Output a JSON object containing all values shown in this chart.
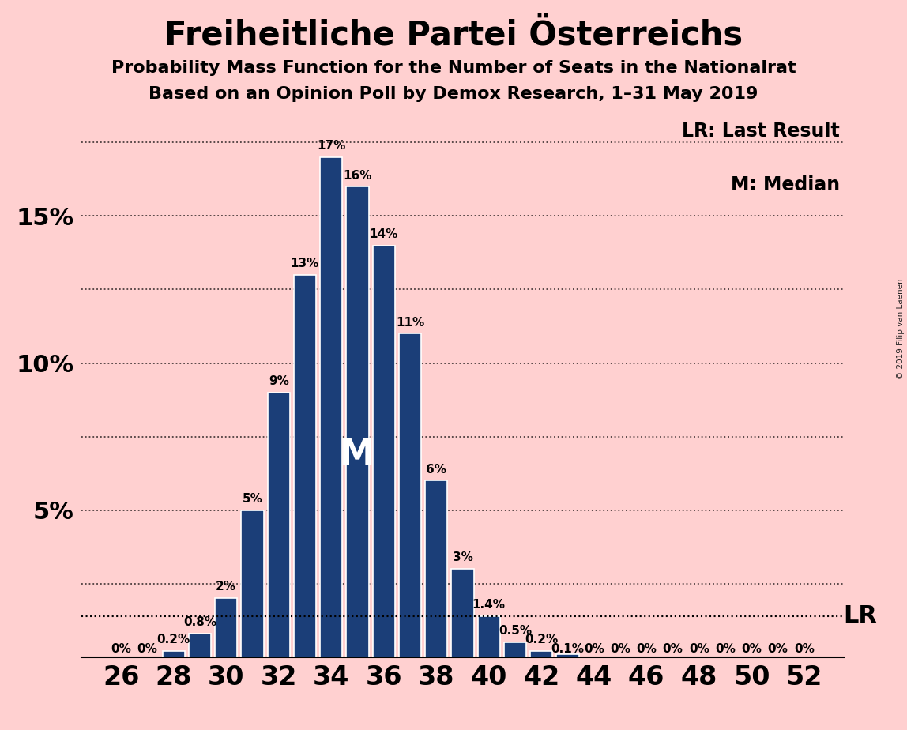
{
  "title": "Freiheitliche Partei Österreichs",
  "subtitle1": "Probability Mass Function for the Number of Seats in the Nationalrat",
  "subtitle2": "Based on an Opinion Poll by Demox Research, 1–31 May 2019",
  "watermark": "© 2019 Filip van Laenen",
  "background_color": "#FFD0D0",
  "bar_color": "#1B3E78",
  "bar_edge_color": "#FFFFFF",
  "seats": [
    26,
    27,
    28,
    29,
    30,
    31,
    32,
    33,
    34,
    35,
    36,
    37,
    38,
    39,
    40,
    41,
    42,
    43,
    44,
    45,
    46,
    47,
    48,
    49,
    50,
    51,
    52
  ],
  "probabilities": [
    0.0,
    0.0,
    0.002,
    0.008,
    0.02,
    0.05,
    0.09,
    0.13,
    0.17,
    0.16,
    0.14,
    0.11,
    0.06,
    0.03,
    0.014,
    0.005,
    0.002,
    0.001,
    0.0,
    0.0,
    0.0,
    0.0,
    0.0,
    0.0,
    0.0,
    0.0,
    0.0
  ],
  "labels": [
    "0%",
    "0%",
    "0.2%",
    "0.8%",
    "2%",
    "5%",
    "9%",
    "13%",
    "17%",
    "16%",
    "14%",
    "11%",
    "6%",
    "3%",
    "1.4%",
    "0.5%",
    "0.2%",
    "0.1%",
    "0%",
    "0%",
    "0%",
    "0%",
    "0%",
    "0%",
    "0%",
    "0%",
    "0%"
  ],
  "xtick_positions": [
    26,
    28,
    30,
    32,
    34,
    36,
    38,
    40,
    42,
    44,
    46,
    48,
    50,
    52
  ],
  "xtick_labels": [
    "26",
    "28",
    "30",
    "32",
    "34",
    "36",
    "38",
    "40",
    "42",
    "44",
    "46",
    "48",
    "50",
    "52"
  ],
  "ylim": [
    0,
    0.185
  ],
  "xlim": [
    24.5,
    53.5
  ],
  "median_seat": 35,
  "lr_value": 0.014,
  "lr_label": "LR",
  "median_label": "M",
  "legend_lr": "LR: Last Result",
  "legend_m": "M: Median",
  "title_fontsize": 30,
  "subtitle_fontsize": 16,
  "bar_label_fontsize": 11,
  "ytick_fontsize": 22,
  "xtick_fontsize": 24,
  "grid_y": [
    0.025,
    0.05,
    0.075,
    0.1,
    0.125,
    0.15,
    0.175
  ]
}
